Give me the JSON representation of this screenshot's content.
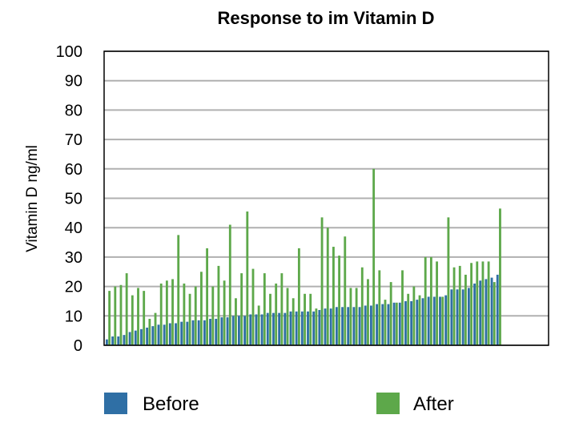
{
  "chart_data": {
    "type": "bar",
    "title": "Response to im Vitamin D",
    "xlabel": "",
    "ylabel": "Vitamin D ng/ml",
    "ylim": [
      0,
      100
    ],
    "yticks": [
      0,
      10,
      20,
      30,
      40,
      50,
      60,
      70,
      80,
      90,
      100
    ],
    "grid": true,
    "legend_placement": "bottom",
    "series": [
      {
        "name": "Before",
        "color": "#2f6fa5",
        "values": [
          2,
          3,
          3,
          3.5,
          4.5,
          5,
          5.5,
          6,
          6.5,
          7,
          7,
          7.5,
          7.5,
          8,
          8,
          8.5,
          8.5,
          8.5,
          9,
          9,
          9.5,
          9.5,
          10,
          10,
          10,
          10.5,
          10.5,
          10.5,
          11,
          11,
          11,
          11,
          11.5,
          11.5,
          11.5,
          11.5,
          11.5,
          12,
          12.5,
          12.5,
          13,
          13,
          13,
          13,
          13,
          13.5,
          13.5,
          14,
          14,
          14,
          14.5,
          14.5,
          15,
          15,
          15.5,
          16,
          16.5,
          16.5,
          16.5,
          17,
          19,
          19,
          19,
          19.5,
          21,
          22,
          22.5,
          23,
          24
        ]
      },
      {
        "name": "After",
        "color": "#5da84a",
        "values": [
          18.5,
          20,
          20.5,
          24.5,
          17,
          19.5,
          18.5,
          9,
          11,
          21,
          22,
          22.5,
          37.5,
          21,
          17.5,
          20,
          25,
          33,
          20,
          27,
          22,
          41,
          16,
          24.5,
          45.5,
          26,
          13.5,
          24.5,
          17.5,
          21,
          24.5,
          19.5,
          16,
          33,
          17.5,
          17.5,
          12.5,
          43.5,
          40,
          33.5,
          30.5,
          37,
          19.5,
          19.5,
          26.5,
          22.5,
          60,
          25.5,
          15.5,
          21.5,
          14.5,
          25.5,
          17.5,
          20,
          17,
          30,
          30,
          28.5,
          16.5,
          43.5,
          26.5,
          27,
          24,
          28,
          28.5,
          28.5,
          28.5,
          21.5,
          46.5
        ]
      }
    ]
  }
}
